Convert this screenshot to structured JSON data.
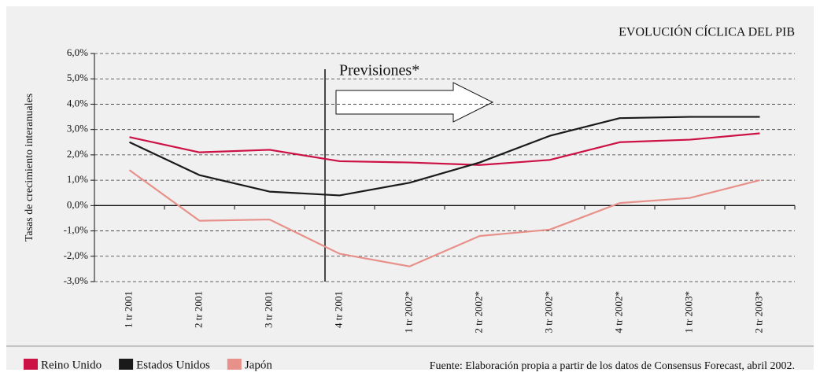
{
  "chart_data": {
    "type": "line",
    "title": "EVOLUCIÓN CÍCLICA DEL PIB",
    "y_label": "Tasas de crecimiento interanuales",
    "annotation": "Previsiones*",
    "source": "Fuente: Elaboración propia a partir de los datos de Consensus Forecast, abril 2002.",
    "categories": [
      "1 tr 2001",
      "2 tr 2001",
      "3 tr 2001",
      "4 tr 2001",
      "1 tr 2002*",
      "2 tr 2002*",
      "3 tr 2002*",
      "4 tr 2002*",
      "1 tr 2003*",
      "2 tr 2003*"
    ],
    "series": [
      {
        "name": "Reino Unido",
        "color": "#cc1144",
        "values": [
          2.7,
          2.1,
          2.2,
          1.75,
          1.7,
          1.6,
          1.8,
          2.5,
          2.6,
          2.85
        ]
      },
      {
        "name": "Estados Unidos",
        "color": "#1a1a1a",
        "values": [
          2.5,
          1.2,
          0.55,
          0.4,
          0.9,
          1.7,
          2.75,
          3.45,
          3.5,
          3.5
        ]
      },
      {
        "name": "Japón",
        "color": "#e8908a",
        "values": [
          1.4,
          -0.6,
          -0.55,
          -1.9,
          -2.4,
          -1.2,
          -0.95,
          0.1,
          0.3,
          1.0
        ]
      }
    ],
    "ylim": [
      -3,
      6
    ],
    "yticks": [
      {
        "value": -3,
        "label": "-3,0%"
      },
      {
        "value": -2,
        "label": "-2,0%"
      },
      {
        "value": -1,
        "label": "-1,0%"
      },
      {
        "value": 0,
        "label": "0,0%"
      },
      {
        "value": 1,
        "label": "1,0%"
      },
      {
        "value": 2,
        "label": "2,0%"
      },
      {
        "value": 3,
        "label": "3,0%"
      },
      {
        "value": 4,
        "label": "4,0%"
      },
      {
        "value": 5,
        "label": "5,0%"
      },
      {
        "value": 6,
        "label": "6,0%"
      }
    ],
    "grid": true
  }
}
